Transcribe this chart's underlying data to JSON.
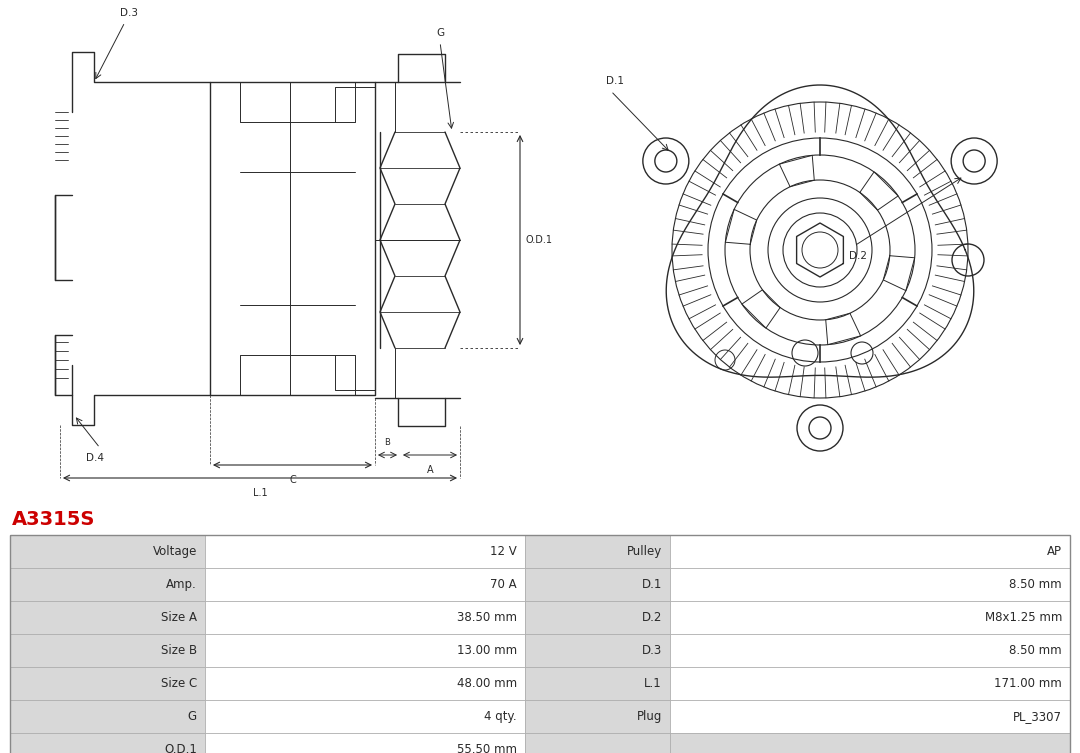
{
  "title": "A3315S",
  "title_color": "#cc0000",
  "bg_color": "#ffffff",
  "table_rows": [
    [
      "Voltage",
      "12 V",
      "Pulley",
      "AP"
    ],
    [
      "Amp.",
      "70 A",
      "D.1",
      "8.50 mm"
    ],
    [
      "Size A",
      "38.50 mm",
      "D.2",
      "M8x1.25 mm"
    ],
    [
      "Size B",
      "13.00 mm",
      "D.3",
      "8.50 mm"
    ],
    [
      "Size C",
      "48.00 mm",
      "L.1",
      "171.00 mm"
    ],
    [
      "G",
      "4 qty.",
      "Plug",
      "PL_3307"
    ],
    [
      "O.D.1",
      "55.50 mm",
      "",
      ""
    ]
  ],
  "line_color": "#2a2a2a",
  "text_color": "#2a2a2a",
  "font_size": 8.5,
  "label_fontsize": 7.5,
  "dim_fontsize": 7.0
}
